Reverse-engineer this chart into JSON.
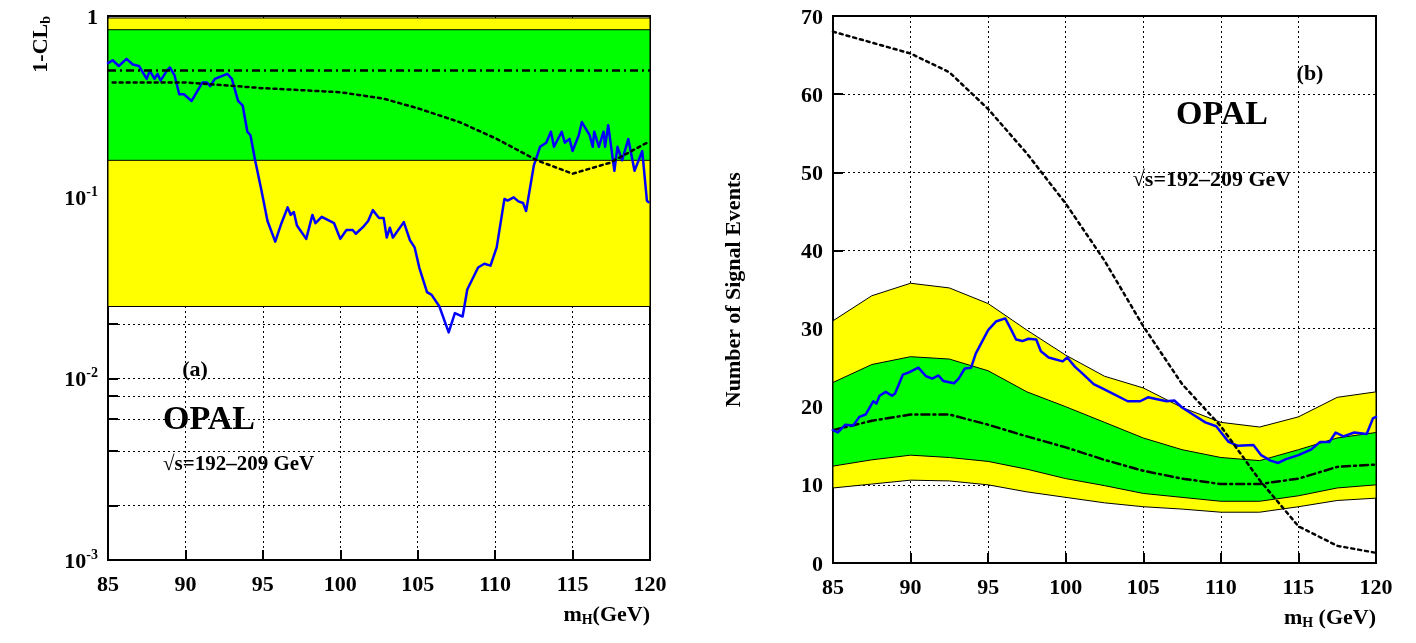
{
  "chart_data": [
    {
      "type": "line",
      "ylabel": "1-CL$_{b}$",
      "xlabel": "m$_{H}$(GeV)",
      "annotations": [
        "(a)",
        "OPAL",
        "√s=192–209 GeV"
      ],
      "log": "y",
      "grid": true,
      "marker": "none",
      "xlim": [
        85,
        120
      ],
      "xticks": [
        85,
        90,
        95,
        100,
        105,
        110,
        115,
        120
      ],
      "ylim": [
        0.001,
        1
      ],
      "yticks": [
        {
          "value": 0.001,
          "label": "10$^{-3}$"
        },
        {
          "value": 0.002,
          "label": null
        },
        {
          "value": 0.004,
          "label": null
        },
        {
          "value": 0.006,
          "label": null
        },
        {
          "value": 0.008,
          "label": null
        },
        {
          "value": 0.01,
          "label": "10$^{-2}$"
        },
        {
          "value": 0.02,
          "label": null
        },
        {
          "value": 0.04,
          "label": null
        },
        {
          "value": 0.06,
          "label": null
        },
        {
          "value": 0.08,
          "label": null
        },
        {
          "value": 0.1,
          "label": "10$^{-1}$"
        },
        {
          "value": 0.2,
          "label": null
        },
        {
          "value": 0.4,
          "label": null
        },
        {
          "value": 0.6,
          "label": null
        },
        {
          "value": 0.8,
          "label": null
        },
        1
      ],
      "bands": [
        {
          "axis": "y",
          "from": 0.025,
          "to": 0.975,
          "color": "#ffff00"
        },
        {
          "axis": "y",
          "from": 0.16,
          "to": 0.84,
          "color": "#00ff00"
        }
      ],
      "ref_lines": [
        {
          "axis": "y",
          "value": 0.5,
          "color": "#000000",
          "line_style": "dashed"
        }
      ],
      "series": [
        {
          "color": "#0000ff",
          "x": [
            85.0,
            85.3,
            85.7,
            86.2,
            86.6,
            87.0,
            87.5,
            87.7,
            88.0,
            88.2,
            88.4,
            88.8,
            89.0,
            89.3,
            89.6,
            89.9,
            90.4,
            91.1,
            91.4,
            91.6,
            91.9,
            92.7,
            93.0,
            93.4,
            93.7,
            94.0,
            94.2,
            94.5,
            94.9,
            95.3,
            95.8,
            96.2,
            96.6,
            96.8,
            97.0,
            97.2,
            97.8,
            98.2,
            98.4,
            98.8,
            99.6,
            100.0,
            100.4,
            100.8,
            101.0,
            101.5,
            101.8,
            102.1,
            102.5,
            102.8,
            103.0,
            103.2,
            103.4,
            104.1,
            104.5,
            104.8,
            105.1,
            105.6,
            105.9,
            106.4,
            107.0,
            107.4,
            107.9,
            108.2,
            108.9,
            109.3,
            109.7,
            110.1,
            110.6,
            110.8,
            111.2,
            111.5,
            111.8,
            112.0,
            112.5,
            112.9,
            113.3,
            113.6,
            113.8,
            114.3,
            114.5,
            114.8,
            115.0,
            115.4,
            115.6,
            116.1,
            116.3,
            116.4,
            116.7,
            117.0,
            117.1,
            117.3,
            117.7,
            117.9,
            118.2,
            118.6,
            119.0,
            119.5,
            119.8,
            119.9
          ],
          "values": [
            0.55,
            0.57,
            0.53,
            0.58,
            0.54,
            0.53,
            0.45,
            0.5,
            0.45,
            0.48,
            0.44,
            0.5,
            0.52,
            0.47,
            0.37,
            0.37,
            0.34,
            0.43,
            0.43,
            0.41,
            0.45,
            0.48,
            0.45,
            0.34,
            0.32,
            0.23,
            0.22,
            0.16,
            0.11,
            0.074,
            0.057,
            0.072,
            0.088,
            0.08,
            0.083,
            0.07,
            0.059,
            0.08,
            0.072,
            0.078,
            0.072,
            0.059,
            0.066,
            0.066,
            0.063,
            0.069,
            0.074,
            0.085,
            0.077,
            0.077,
            0.06,
            0.068,
            0.06,
            0.073,
            0.058,
            0.053,
            0.041,
            0.03,
            0.029,
            0.025,
            0.018,
            0.023,
            0.022,
            0.031,
            0.041,
            0.043,
            0.042,
            0.053,
            0.098,
            0.096,
            0.1,
            0.095,
            0.093,
            0.084,
            0.15,
            0.19,
            0.2,
            0.23,
            0.19,
            0.23,
            0.2,
            0.21,
            0.18,
            0.22,
            0.26,
            0.22,
            0.19,
            0.23,
            0.19,
            0.23,
            0.19,
            0.25,
            0.14,
            0.19,
            0.16,
            0.21,
            0.14,
            0.18,
            0.096,
            0.094
          ]
        },
        {
          "color": "#000000",
          "line_style": "dotted",
          "x": [
            85.3,
            90,
            95,
            100,
            102.8,
            105,
            107.7,
            110.1,
            112.7,
            115,
            117.4,
            119.8
          ],
          "values": [
            0.43,
            0.43,
            0.4,
            0.38,
            0.35,
            0.31,
            0.26,
            0.21,
            0.16,
            0.135,
            0.155,
            0.2
          ]
        }
      ]
    },
    {
      "type": "line",
      "ylabel": "Number of Signal Events",
      "xlabel": "m$_{H}$ (GeV)",
      "annotations": [
        "(b)",
        "OPAL",
        "√s=192–209 GeV"
      ],
      "grid": true,
      "marker": "none",
      "xlim": [
        85,
        120
      ],
      "xticks": [
        85,
        90,
        95,
        100,
        105,
        110,
        115,
        120
      ],
      "ylim": [
        0,
        70
      ],
      "yticks": [
        0,
        10,
        20,
        30,
        40,
        50,
        60,
        70
      ],
      "series": [
        {
          "type": "area",
          "color": "#ffff00",
          "x": [
            85,
            87.5,
            90,
            92.5,
            95,
            97.5,
            100,
            102.5,
            105,
            107.5,
            110,
            112.5,
            115,
            117.5,
            120
          ],
          "values": [
            null,
            null,
            null,
            null,
            null,
            null,
            null,
            null,
            null,
            null,
            null,
            null,
            null,
            null,
            null
          ],
          "lower": [
            9.6,
            10.1,
            10.6,
            10.5,
            10.0,
            9.1,
            8.4,
            7.7,
            7.2,
            6.9,
            6.5,
            6.5,
            7.2,
            8.0,
            8.3
          ],
          "upper": [
            31.0,
            34.2,
            35.8,
            35.2,
            33.2,
            29.8,
            26.6,
            23.9,
            22.4,
            19.9,
            18.0,
            17.4,
            18.7,
            21.2,
            21.9
          ]
        },
        {
          "type": "area",
          "color": "#00ff00",
          "x": [
            85,
            87.5,
            90,
            92.5,
            95,
            97.5,
            100,
            102.5,
            105,
            107.5,
            110,
            112.5,
            115,
            117.5,
            120
          ],
          "values": [
            null,
            null,
            null,
            null,
            null,
            null,
            null,
            null,
            null,
            null,
            null,
            null,
            null,
            null,
            null
          ],
          "lower": [
            12.4,
            13.2,
            13.8,
            13.5,
            13.0,
            12.0,
            10.8,
            9.9,
            8.9,
            8.4,
            7.9,
            7.9,
            8.6,
            9.6,
            10.0
          ],
          "upper": [
            23.1,
            25.4,
            26.4,
            26.1,
            24.6,
            21.9,
            20.0,
            18.0,
            16.0,
            14.5,
            13.5,
            13.1,
            14.5,
            16.0,
            16.7
          ]
        },
        {
          "color": "#000000",
          "line_style": "dashed",
          "x": [
            85,
            87.5,
            90,
            92.5,
            95,
            97.5,
            100,
            102.5,
            105,
            107.5,
            110,
            112.5,
            115,
            117.5,
            120
          ],
          "values": [
            17.0,
            18.2,
            19.0,
            19.0,
            17.7,
            16.2,
            14.8,
            13.2,
            11.8,
            10.8,
            10.1,
            10.1,
            10.8,
            12.3,
            12.6
          ]
        },
        {
          "color": "#0000ff",
          "x": [
            85.0,
            85.3,
            85.8,
            86.3,
            86.7,
            87.1,
            87.6,
            87.8,
            88.0,
            88.4,
            88.8,
            89.0,
            89.5,
            89.9,
            90.5,
            91.0,
            91.4,
            91.8,
            92.1,
            92.8,
            93.1,
            93.5,
            93.9,
            94.2,
            94.6,
            95.0,
            95.5,
            96.1,
            96.5,
            96.8,
            97.2,
            97.6,
            98.1,
            98.4,
            98.9,
            99.8,
            100.1,
            100.6,
            101.0,
            101.8,
            102.3,
            103.0,
            104.0,
            104.8,
            105.3,
            106.5,
            107.0,
            107.5,
            108.2,
            109.0,
            109.7,
            110.5,
            111.1,
            112.1,
            112.6,
            113.2,
            113.7,
            114.2,
            115.0,
            115.8,
            116.4,
            117.0,
            117.4,
            117.9,
            118.6,
            119.4,
            119.8,
            120.0
          ],
          "values": [
            17.0,
            16.7,
            17.7,
            17.6,
            18.7,
            19.0,
            20.7,
            20.4,
            21.4,
            21.9,
            21.4,
            21.7,
            24.1,
            24.4,
            25.0,
            23.9,
            23.6,
            24.0,
            23.3,
            23.0,
            23.6,
            24.9,
            25.0,
            26.8,
            28.3,
            29.8,
            30.9,
            31.3,
            29.8,
            28.6,
            28.4,
            28.7,
            28.6,
            27.1,
            26.3,
            25.8,
            26.3,
            25.1,
            24.4,
            22.9,
            22.4,
            21.7,
            20.7,
            20.7,
            21.2,
            20.7,
            20.8,
            19.9,
            19.0,
            18.0,
            17.5,
            15.5,
            15.0,
            15.1,
            13.8,
            13.1,
            12.8,
            13.3,
            13.8,
            14.5,
            15.5,
            15.5,
            16.7,
            16.2,
            16.7,
            16.5,
            18.5,
            18.7
          ]
        },
        {
          "color": "#000000",
          "line_style": "dotted",
          "x": [
            85,
            90,
            92.5,
            95,
            97.5,
            100,
            102.5,
            105,
            107.5,
            110,
            112.5,
            115,
            117.5,
            120
          ],
          "values": [
            68.0,
            65.2,
            62.8,
            58.1,
            52.4,
            46.0,
            38.7,
            30.3,
            22.9,
            17.5,
            10.6,
            4.7,
            2.2,
            1.3
          ]
        }
      ]
    }
  ]
}
